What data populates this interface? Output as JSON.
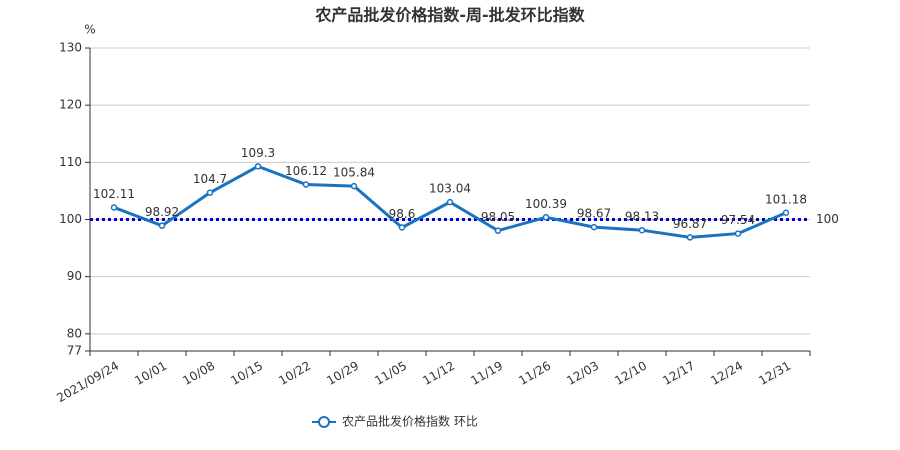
{
  "chart_data": {
    "type": "line",
    "title": "农产品批发价格指数-周-批发环比指数",
    "y_unit": "%",
    "categories": [
      "2021/09/24",
      "10/01",
      "10/08",
      "10/15",
      "10/22",
      "10/29",
      "11/05",
      "11/12",
      "11/19",
      "11/26",
      "12/03",
      "12/10",
      "12/17",
      "12/24",
      "12/31"
    ],
    "series": [
      {
        "name": "农产品批发价格指数  环比",
        "color": "#1a73c1",
        "values": [
          102.11,
          98.92,
          104.7,
          109.3,
          106.12,
          105.84,
          98.6,
          103.04,
          98.05,
          100.39,
          98.67,
          98.13,
          96.87,
          97.54,
          101.18
        ]
      }
    ],
    "reference_line": {
      "value": 100,
      "color": "#0000cc"
    },
    "ylim": [
      77,
      130
    ],
    "yticks": [
      77,
      80,
      90,
      100,
      110,
      120,
      130
    ],
    "grid": true
  }
}
